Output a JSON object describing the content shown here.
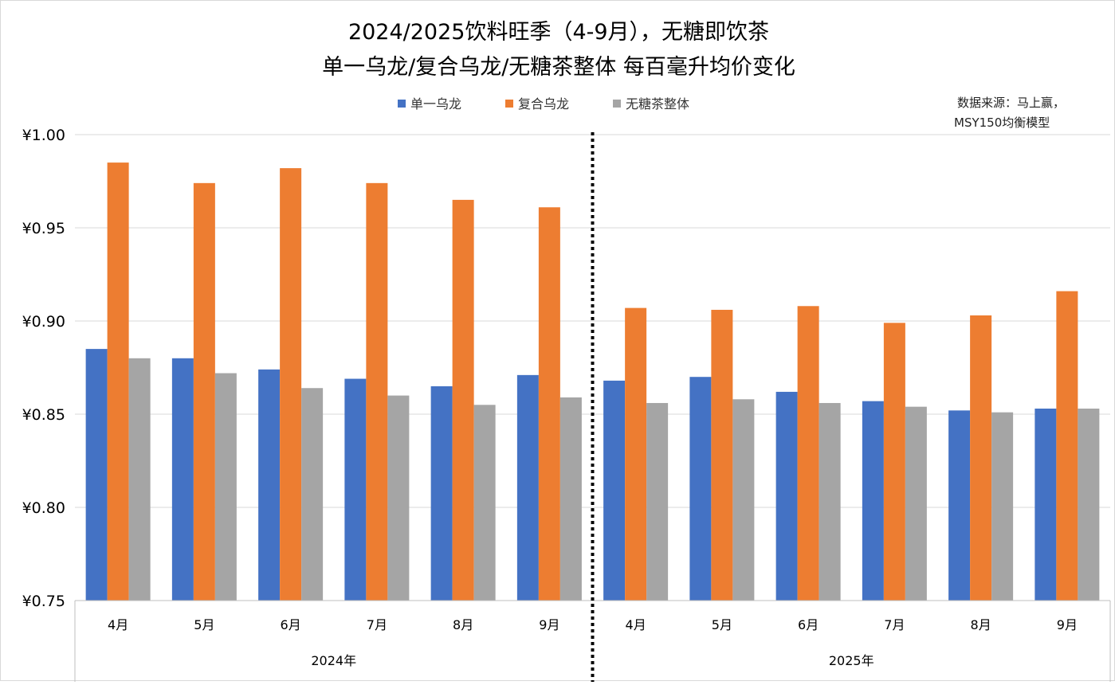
{
  "chart_data": {
    "type": "bar",
    "title_line1": "2024/2025饮料旺季（4-9月），无糖即饮茶",
    "title_line2": "单一乌龙/复合乌龙/无糖茶整体  每百毫升均价变化",
    "source_line1": "数据来源：马上赢，",
    "source_line2": "MSY150均衡模型",
    "categories": [
      "4月",
      "5月",
      "6月",
      "7月",
      "8月",
      "9月",
      "4月",
      "5月",
      "6月",
      "7月",
      "8月",
      "9月"
    ],
    "groups": [
      {
        "label": "2024年",
        "count": 6
      },
      {
        "label": "2025年",
        "count": 6
      }
    ],
    "series": [
      {
        "name": "单一乌龙",
        "color": "#4472C4",
        "values": [
          0.885,
          0.88,
          0.874,
          0.869,
          0.865,
          0.871,
          0.868,
          0.87,
          0.862,
          0.857,
          0.852,
          0.853
        ]
      },
      {
        "name": "复合乌龙",
        "color": "#ED7D31",
        "values": [
          0.985,
          0.974,
          0.982,
          0.974,
          0.965,
          0.961,
          0.907,
          0.906,
          0.908,
          0.899,
          0.903,
          0.916
        ]
      },
      {
        "name": "无糖茶整体",
        "color": "#A5A5A5",
        "values": [
          0.88,
          0.872,
          0.864,
          0.86,
          0.855,
          0.859,
          0.856,
          0.858,
          0.856,
          0.854,
          0.851,
          0.853
        ]
      }
    ],
    "ylim": [
      0.75,
      1.0
    ],
    "yticks": [
      "¥0.75",
      "¥0.80",
      "¥0.85",
      "¥0.90",
      "¥0.95",
      "¥1.00"
    ],
    "ytick_values": [
      0.75,
      0.8,
      0.85,
      0.9,
      0.95,
      1.0
    ],
    "grid": true,
    "legend": "top-center",
    "divider": "dotted line between 2024 and 2025"
  }
}
